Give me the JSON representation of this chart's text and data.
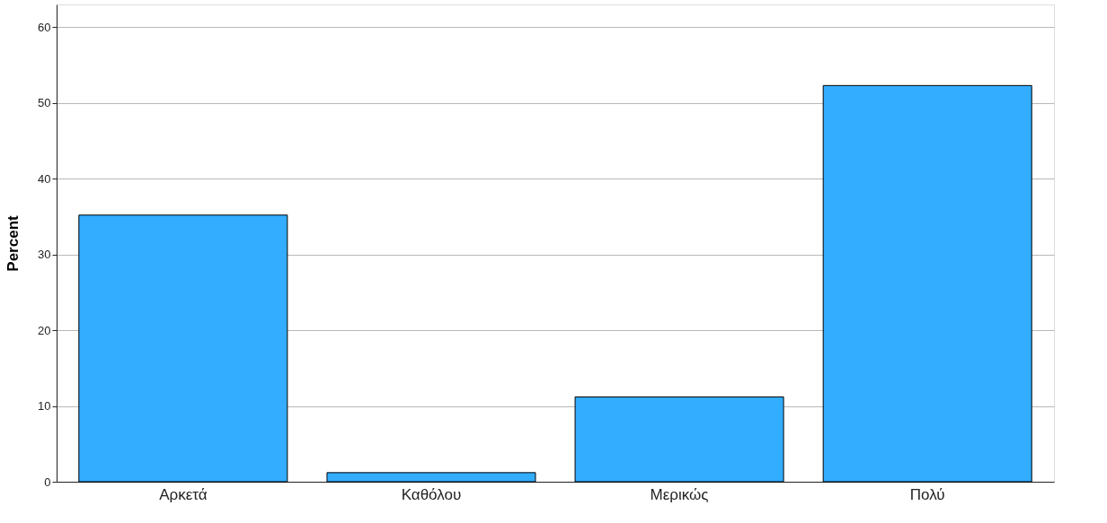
{
  "chart_data": {
    "type": "bar",
    "ylabel": "Percent",
    "categories": [
      "Αρκετά",
      "Καθόλου",
      "Μερικώς",
      "Πολύ"
    ],
    "values": [
      35.2,
      1.2,
      11.2,
      52.3
    ],
    "color": "#33adff",
    "ylim": [
      0,
      63
    ],
    "yticks": [
      0,
      10,
      20,
      30,
      40,
      50,
      60
    ],
    "grid": "y"
  }
}
